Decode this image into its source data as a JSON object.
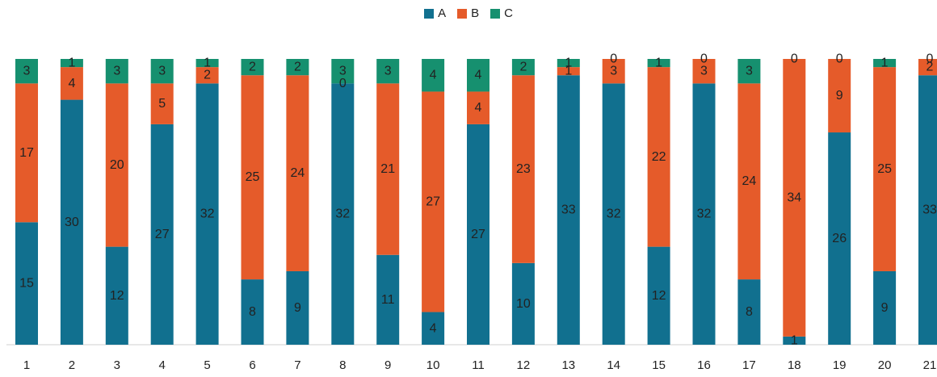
{
  "chart_data": {
    "type": "bar",
    "stacked": true,
    "normalized": true,
    "categories": [
      "1",
      "2",
      "3",
      "4",
      "5",
      "6",
      "7",
      "8",
      "9",
      "10",
      "11",
      "12",
      "13",
      "14",
      "15",
      "16",
      "17",
      "18",
      "19",
      "20",
      "21"
    ],
    "series": [
      {
        "name": "A",
        "color": "#11708f",
        "values": [
          15,
          30,
          12,
          27,
          32,
          8,
          9,
          32,
          11,
          4,
          27,
          10,
          33,
          32,
          12,
          32,
          8,
          1,
          26,
          9,
          33
        ]
      },
      {
        "name": "B",
        "color": "#e55b2a",
        "values": [
          17,
          4,
          20,
          5,
          2,
          25,
          24,
          0,
          21,
          27,
          4,
          23,
          1,
          3,
          22,
          3,
          24,
          34,
          9,
          25,
          2
        ]
      },
      {
        "name": "C",
        "color": "#16906f",
        "values": [
          3,
          1,
          3,
          3,
          1,
          2,
          2,
          3,
          3,
          4,
          4,
          2,
          1,
          0,
          1,
          0,
          3,
          0,
          0,
          1,
          0
        ]
      }
    ],
    "legend": "top-center",
    "grid": false
  }
}
